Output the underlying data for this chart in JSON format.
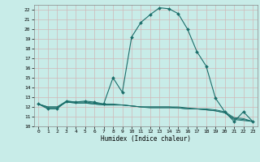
{
  "xlabel": "Humidex (Indice chaleur)",
  "bg_color": "#c8ece8",
  "grid_color": "#d0b8b8",
  "line_color": "#1a6e6a",
  "xlim": [
    -0.5,
    23.5
  ],
  "ylim": [
    10,
    22.5
  ],
  "yticks": [
    10,
    11,
    12,
    13,
    14,
    15,
    16,
    17,
    18,
    19,
    20,
    21,
    22
  ],
  "xticks": [
    0,
    1,
    2,
    3,
    4,
    5,
    6,
    7,
    8,
    9,
    10,
    11,
    12,
    13,
    14,
    15,
    16,
    17,
    18,
    19,
    20,
    21,
    22,
    23
  ],
  "series": [
    {
      "x": [
        0,
        1,
        2,
        3,
        4,
        5,
        6,
        7,
        8,
        9,
        10,
        11,
        12,
        13,
        14,
        15,
        16,
        17,
        18,
        19,
        20,
        21,
        22,
        23
      ],
      "y": [
        12.3,
        11.8,
        11.8,
        12.6,
        12.5,
        12.6,
        12.5,
        12.3,
        15.0,
        13.5,
        19.2,
        20.7,
        21.5,
        22.2,
        22.1,
        21.6,
        20.0,
        17.7,
        16.2,
        12.9,
        11.5,
        10.5,
        11.5,
        10.5
      ],
      "marker": "D",
      "markersize": 2.0,
      "linewidth": 0.8
    },
    {
      "x": [
        0,
        1,
        2,
        3,
        4,
        5,
        6,
        7,
        8,
        9,
        10,
        11,
        12,
        13,
        14,
        15,
        16,
        17,
        18,
        19,
        20,
        21,
        22,
        23
      ],
      "y": [
        12.3,
        11.9,
        11.9,
        12.5,
        12.4,
        12.4,
        12.3,
        12.2,
        12.2,
        12.2,
        12.1,
        12.0,
        11.9,
        11.9,
        11.9,
        11.9,
        11.8,
        11.8,
        11.7,
        11.6,
        11.4,
        10.7,
        10.6,
        10.5
      ],
      "marker": null,
      "markersize": 0,
      "linewidth": 0.7
    },
    {
      "x": [
        0,
        1,
        2,
        3,
        4,
        5,
        6,
        7,
        8,
        9,
        10,
        11,
        12,
        13,
        14,
        15,
        16,
        17,
        18,
        19,
        20,
        21,
        22,
        23
      ],
      "y": [
        12.3,
        12.0,
        12.0,
        12.5,
        12.4,
        12.4,
        12.3,
        12.2,
        12.2,
        12.2,
        12.1,
        12.0,
        12.0,
        12.0,
        12.0,
        11.9,
        11.8,
        11.8,
        11.7,
        11.6,
        11.4,
        10.8,
        10.7,
        10.5
      ],
      "marker": null,
      "markersize": 0,
      "linewidth": 0.7
    },
    {
      "x": [
        0,
        1,
        2,
        3,
        4,
        5,
        6,
        7,
        8,
        9,
        10,
        11,
        12,
        13,
        14,
        15,
        16,
        17,
        18,
        19,
        20,
        21,
        22,
        23
      ],
      "y": [
        12.3,
        12.0,
        12.0,
        12.6,
        12.5,
        12.5,
        12.4,
        12.3,
        12.3,
        12.2,
        12.1,
        12.0,
        12.0,
        12.0,
        12.0,
        12.0,
        11.9,
        11.8,
        11.8,
        11.7,
        11.5,
        10.9,
        10.8,
        10.5
      ],
      "marker": null,
      "markersize": 0,
      "linewidth": 0.7
    }
  ]
}
